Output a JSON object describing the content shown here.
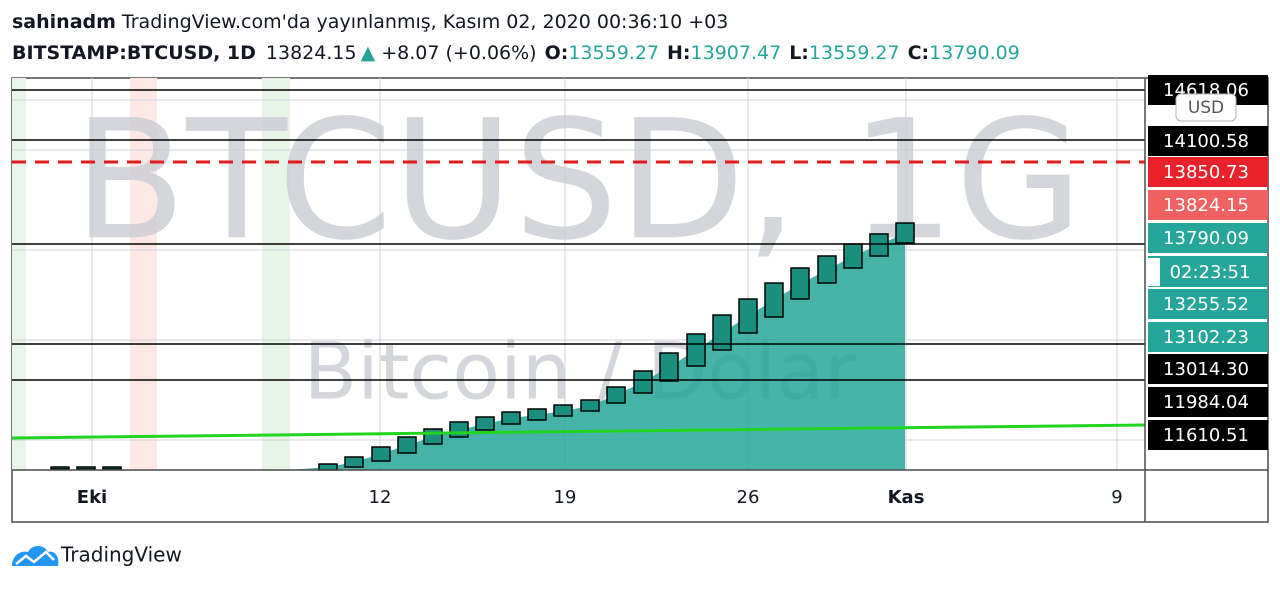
{
  "header": {
    "author": "sahinadm",
    "published": "TradingView.com'da yayınlanmış, Kasım 02, 2020 00:36:10 +03"
  },
  "symbol_bar": {
    "symbol": "BITSTAMP:BTCUSD, 1D",
    "last": "13824.15",
    "direction": "▲",
    "change": "+8.07 (+0.06%)",
    "open_label": "O:",
    "open": "13559.27",
    "high_label": "H:",
    "high": "13907.47",
    "low_label": "L:",
    "low": "13559.27",
    "close_label": "C:",
    "close": "13790.09"
  },
  "watermark": {
    "symbol": "BTCUSD, 1G",
    "description": "Bitcoin / Dolar"
  },
  "price_axis": {
    "currency": "USD",
    "labels": [
      "14618.06",
      "14100.58",
      "13850.73",
      "13824.15",
      "13790.09",
      "13255.52",
      "13102.23",
      "13014.30",
      "11984.04",
      "11610.51"
    ],
    "countdown": "02:23:51"
  },
  "time_axis": {
    "labels": [
      "Eki",
      "12",
      "19",
      "26",
      "Kas",
      "9"
    ]
  },
  "footer": {
    "brand": "TradingView"
  }
}
